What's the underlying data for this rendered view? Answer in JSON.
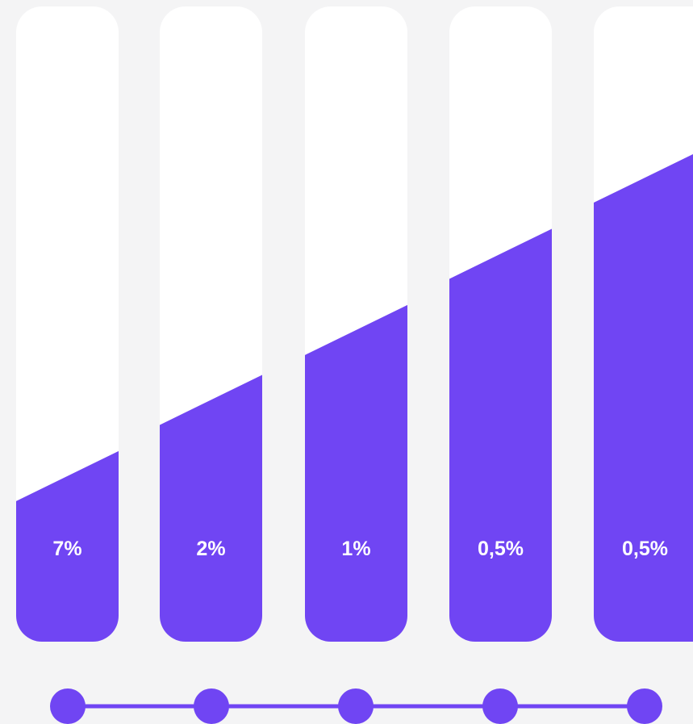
{
  "chart_data": {
    "type": "bar",
    "title": "",
    "xlabel": "",
    "ylabel": "",
    "bar_fill_levels": [
      0.3,
      0.42,
      0.53,
      0.65,
      0.77
    ],
    "labels": [
      "7%",
      "2%",
      "1%",
      "0,5%",
      "0,5%"
    ],
    "timeline_nodes": 5,
    "colors": {
      "background": "#f4f4f5",
      "track": "#ffffff",
      "fill": "#7045f3",
      "label": "#ffffff",
      "timeline": "#7045f3"
    }
  }
}
